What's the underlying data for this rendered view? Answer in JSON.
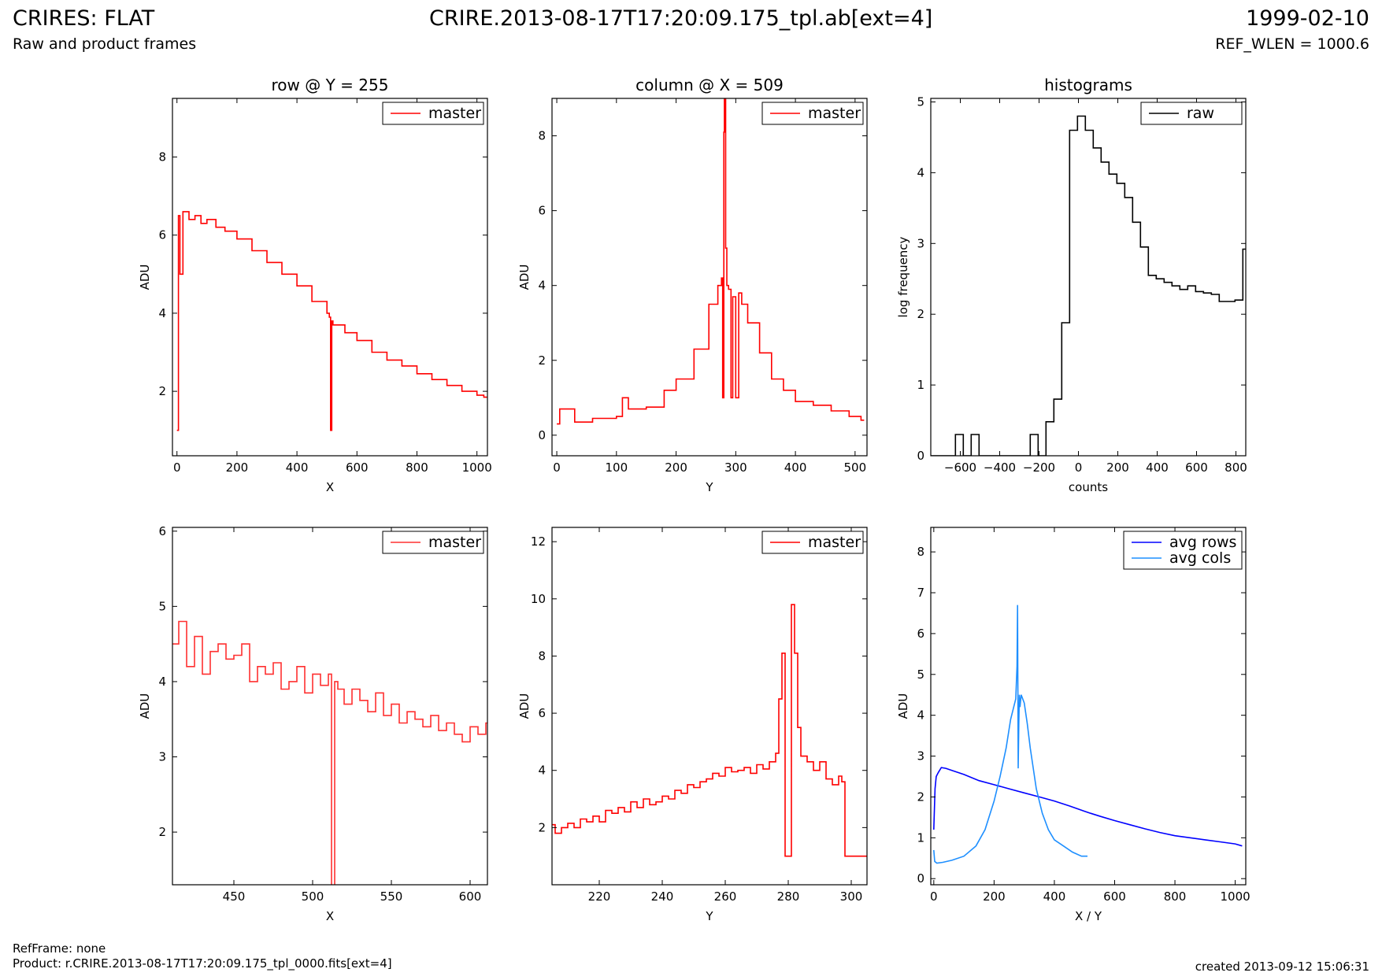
{
  "header": {
    "title": "CRIRES: FLAT",
    "subtitle": "Raw and product frames",
    "file": "CRIRE.2013-08-17T17:20:09.175_tpl.ab[ext=4]",
    "date": "1999-02-10",
    "ref_wlen": "REF_WLEN = 1000.6"
  },
  "footer": {
    "ref_frame": "RefFrame: none",
    "product": "Product: r.CRIRE.2013-08-17T17:20:09.175_tpl_0000.fits[ext=4]",
    "created": "created 2013-09-12 15:06:31"
  },
  "chart_data": [
    {
      "type": "line",
      "title": "row @ Y = 255",
      "xlabel": "X",
      "ylabel": "ADU",
      "xlim": [
        -15,
        1035
      ],
      "ylim": [
        0.35,
        9.5
      ],
      "xticks": [
        0,
        200,
        400,
        600,
        800,
        1000
      ],
      "yticks": [
        2,
        4,
        6,
        8
      ],
      "legend": "top-right",
      "series": [
        {
          "name": "master",
          "color": "#ff0000",
          "step": true,
          "x": [
            0,
            5,
            10,
            20,
            40,
            60,
            80,
            100,
            130,
            160,
            200,
            250,
            300,
            350,
            400,
            450,
            500,
            508,
            512,
            516,
            520,
            560,
            600,
            650,
            700,
            750,
            800,
            850,
            900,
            950,
            1000,
            1023
          ],
          "y": [
            1.0,
            6.5,
            5.0,
            6.6,
            6.4,
            6.5,
            6.3,
            6.4,
            6.2,
            6.1,
            5.9,
            5.6,
            5.3,
            5.0,
            4.7,
            4.3,
            4.0,
            3.9,
            1.0,
            3.8,
            3.7,
            3.5,
            3.3,
            3.0,
            2.8,
            2.65,
            2.45,
            2.3,
            2.15,
            2.0,
            1.9,
            1.85
          ]
        }
      ]
    },
    {
      "type": "line",
      "title": "column @ X = 509",
      "xlabel": "Y",
      "ylabel": "ADU",
      "xlim": [
        -8,
        520
      ],
      "ylim": [
        -0.55,
        9.0
      ],
      "xticks": [
        0,
        100,
        200,
        300,
        400,
        500
      ],
      "yticks": [
        0,
        2,
        4,
        6,
        8
      ],
      "legend": "top-right",
      "series": [
        {
          "name": "master",
          "color": "#ff0000",
          "step": true,
          "x": [
            0,
            5,
            30,
            60,
            100,
            110,
            120,
            150,
            180,
            200,
            230,
            255,
            270,
            276,
            278,
            280,
            281,
            283,
            285,
            288,
            292,
            295,
            300,
            305,
            310,
            320,
            340,
            360,
            380,
            400,
            430,
            460,
            490,
            510
          ],
          "y": [
            0.3,
            0.7,
            0.35,
            0.45,
            0.5,
            1.0,
            0.7,
            0.75,
            1.2,
            1.5,
            2.3,
            3.5,
            4.0,
            4.2,
            1.0,
            8.1,
            9.0,
            5.0,
            4.0,
            3.9,
            1.0,
            3.7,
            1.0,
            3.8,
            3.5,
            3.0,
            2.2,
            1.5,
            1.2,
            0.9,
            0.8,
            0.65,
            0.5,
            0.4
          ]
        }
      ]
    },
    {
      "type": "line",
      "title": "histograms",
      "xlabel": "counts",
      "ylabel": "log frequency",
      "xlim": [
        -750,
        850
      ],
      "ylim": [
        0,
        5.05
      ],
      "xticks": [
        -600,
        -400,
        -200,
        0,
        200,
        400,
        600,
        800
      ],
      "yticks": [
        0,
        1,
        2,
        3,
        4,
        5
      ],
      "legend": "top-right",
      "series": [
        {
          "name": "raw",
          "color": "#000000",
          "step": true,
          "x": [
            -750,
            -625,
            -585,
            -545,
            -505,
            -465,
            -245,
            -205,
            -165,
            -125,
            -85,
            -45,
            -5,
            35,
            75,
            115,
            155,
            195,
            235,
            275,
            315,
            355,
            395,
            435,
            475,
            515,
            555,
            595,
            635,
            675,
            715,
            755,
            795,
            835
          ],
          "y": [
            0,
            0.3,
            0,
            0.3,
            0,
            0,
            0.3,
            0,
            0.48,
            0.8,
            1.88,
            4.6,
            4.8,
            4.6,
            4.35,
            4.15,
            3.98,
            3.85,
            3.65,
            3.3,
            2.95,
            2.55,
            2.5,
            2.45,
            2.4,
            2.35,
            2.4,
            2.32,
            2.3,
            2.28,
            2.18,
            2.18,
            2.2,
            2.92
          ]
        }
      ]
    },
    {
      "type": "line",
      "xlabel": "X",
      "ylabel": "ADU",
      "xlim": [
        411,
        611
      ],
      "ylim": [
        1.3,
        6.05
      ],
      "xticks": [
        450,
        500,
        550,
        600
      ],
      "yticks": [
        2,
        3,
        4,
        5,
        6
      ],
      "legend": "top-right",
      "series": [
        {
          "name": "master",
          "color": "#ff3030",
          "step": true,
          "x": [
            411,
            415,
            420,
            425,
            430,
            435,
            440,
            445,
            450,
            455,
            460,
            465,
            470,
            475,
            480,
            485,
            490,
            495,
            500,
            505,
            510,
            512,
            514,
            516,
            520,
            525,
            530,
            535,
            540,
            545,
            550,
            555,
            560,
            565,
            570,
            575,
            580,
            585,
            590,
            595,
            600,
            605,
            610
          ],
          "y": [
            4.5,
            4.8,
            4.2,
            4.6,
            4.1,
            4.4,
            4.5,
            4.3,
            4.35,
            4.5,
            4.0,
            4.2,
            4.1,
            4.25,
            3.9,
            4.0,
            4.2,
            3.85,
            4.1,
            3.95,
            4.1,
            1.0,
            4.0,
            3.9,
            3.7,
            3.9,
            3.75,
            3.6,
            3.85,
            3.55,
            3.7,
            3.45,
            3.6,
            3.5,
            3.4,
            3.55,
            3.35,
            3.45,
            3.3,
            3.2,
            3.4,
            3.3,
            3.45
          ]
        }
      ]
    },
    {
      "type": "line",
      "xlabel": "Y",
      "ylabel": "ADU",
      "xlim": [
        205,
        305
      ],
      "ylim": [
        0,
        12.5
      ],
      "xticks": [
        220,
        240,
        260,
        280,
        300
      ],
      "yticks": [
        2,
        4,
        6,
        8,
        10,
        12
      ],
      "legend": "top-right",
      "series": [
        {
          "name": "master",
          "color": "#ff0000",
          "step": true,
          "x": [
            205,
            206,
            208,
            210,
            212,
            214,
            216,
            218,
            220,
            222,
            224,
            226,
            228,
            230,
            232,
            234,
            236,
            238,
            240,
            242,
            244,
            246,
            248,
            250,
            252,
            254,
            256,
            258,
            260,
            262,
            264,
            266,
            268,
            270,
            272,
            274,
            276,
            277,
            278,
            279,
            280,
            281,
            282,
            283,
            284,
            286,
            288,
            290,
            292,
            294,
            296,
            297,
            298,
            300,
            305
          ],
          "y": [
            2.1,
            1.8,
            2.0,
            2.15,
            2.0,
            2.3,
            2.2,
            2.4,
            2.2,
            2.6,
            2.5,
            2.7,
            2.55,
            2.9,
            2.7,
            3.0,
            2.8,
            2.9,
            3.1,
            3.0,
            3.3,
            3.2,
            3.5,
            3.4,
            3.6,
            3.7,
            3.9,
            3.8,
            4.1,
            3.95,
            4.0,
            4.1,
            3.9,
            4.2,
            4.05,
            4.3,
            4.6,
            6.5,
            8.1,
            1.0,
            1.0,
            9.8,
            8.1,
            5.5,
            4.5,
            4.3,
            4.0,
            4.3,
            3.7,
            3.5,
            3.8,
            3.6,
            1.0,
            1.0,
            1.0
          ]
        }
      ]
    },
    {
      "type": "line",
      "xlabel": "X / Y",
      "ylabel": "ADU",
      "xlim": [
        -10,
        1035
      ],
      "ylim": [
        -0.15,
        8.6
      ],
      "xticks": [
        0,
        200,
        400,
        600,
        800,
        1000
      ],
      "yticks": [
        0,
        1,
        2,
        3,
        4,
        5,
        6,
        7,
        8
      ],
      "legend": "top-right",
      "series": [
        {
          "name": "avg rows",
          "color": "#0000ff",
          "x": [
            0,
            4,
            8,
            15,
            25,
            40,
            60,
            100,
            150,
            200,
            250,
            300,
            350,
            400,
            450,
            500,
            520,
            550,
            600,
            650,
            700,
            750,
            800,
            850,
            900,
            950,
            1000,
            1023
          ],
          "y": [
            1.2,
            2.2,
            2.5,
            2.6,
            2.72,
            2.7,
            2.65,
            2.55,
            2.4,
            2.3,
            2.2,
            2.1,
            2.0,
            1.9,
            1.78,
            1.65,
            1.6,
            1.53,
            1.42,
            1.32,
            1.22,
            1.13,
            1.05,
            1.0,
            0.95,
            0.9,
            0.85,
            0.8
          ]
        },
        {
          "name": "avg cols",
          "color": "#1e8fff",
          "x": [
            0,
            3,
            10,
            30,
            60,
            100,
            140,
            170,
            200,
            220,
            240,
            255,
            265,
            272,
            276,
            278,
            280,
            282,
            284,
            286,
            290,
            300,
            310,
            320,
            340,
            360,
            380,
            400,
            430,
            460,
            490,
            510
          ],
          "y": [
            0.7,
            0.42,
            0.38,
            0.4,
            0.45,
            0.55,
            0.8,
            1.2,
            1.9,
            2.5,
            3.2,
            3.9,
            4.2,
            4.4,
            5.2,
            6.7,
            2.7,
            3.8,
            4.5,
            4.2,
            4.5,
            4.3,
            3.8,
            3.2,
            2.2,
            1.6,
            1.2,
            0.95,
            0.8,
            0.65,
            0.55,
            0.55
          ]
        }
      ]
    }
  ]
}
